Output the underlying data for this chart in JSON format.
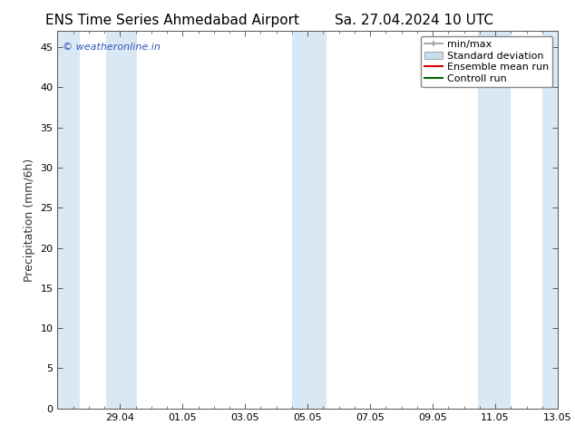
{
  "title_left": "ENS Time Series Ahmedabad Airport",
  "title_right": "Sa. 27.04.2024 10 UTC",
  "ylabel": "Precipitation (mm/6h)",
  "watermark": "© weatheronline.in",
  "watermark_color": "#3355bb",
  "ylim": [
    0,
    47
  ],
  "yticks": [
    0,
    5,
    10,
    15,
    20,
    25,
    30,
    35,
    40,
    45
  ],
  "xtick_labels": [
    "29.04",
    "01.05",
    "03.05",
    "05.05",
    "07.05",
    "09.05",
    "11.05",
    "13.05"
  ],
  "xtick_positions": [
    2,
    4,
    6,
    8,
    10,
    12,
    14,
    16
  ],
  "xlim": [
    0,
    16
  ],
  "shade_bands": [
    [
      0.0,
      0.7
    ],
    [
      1.55,
      2.55
    ],
    [
      7.5,
      8.6
    ],
    [
      13.45,
      14.5
    ],
    [
      15.5,
      16.0
    ]
  ],
  "shade_color": "#d8e8f5",
  "legend_minmax_color": "#999999",
  "legend_std_facecolor": "#c8dcea",
  "legend_std_edgecolor": "#999999",
  "legend_mean_color": "#dd0000",
  "legend_control_color": "#006600",
  "bg_color": "#ffffff",
  "title_fontsize": 11,
  "ylabel_fontsize": 9,
  "tick_fontsize": 8,
  "watermark_fontsize": 8,
  "legend_fontsize": 8
}
